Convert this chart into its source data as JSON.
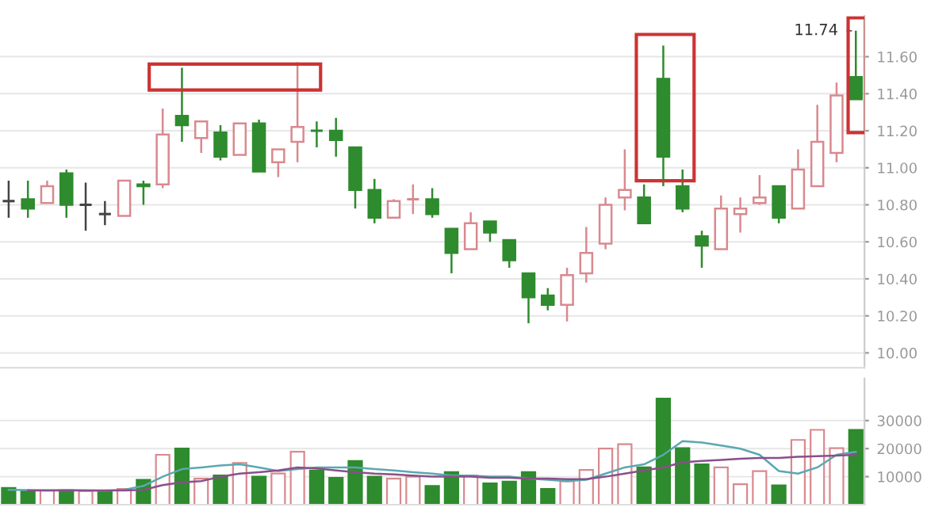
{
  "chart_data": [
    {
      "type": "candlestick",
      "categories": [
        null,
        null,
        null,
        null,
        null,
        null,
        null,
        null,
        null,
        null,
        null,
        null,
        null,
        null,
        null,
        null,
        null,
        null,
        null,
        null,
        null,
        null,
        null,
        null,
        null,
        null,
        null,
        null,
        null,
        null,
        null,
        null,
        null,
        null,
        null,
        null,
        null,
        null,
        null,
        null,
        null,
        null,
        null,
        null,
        null
      ],
      "ohlc": [
        [
          10.82,
          10.93,
          10.73,
          10.82
        ],
        [
          10.83,
          10.93,
          10.73,
          10.78
        ],
        [
          10.81,
          10.93,
          10.81,
          10.9
        ],
        [
          10.97,
          10.99,
          10.73,
          10.8
        ],
        [
          10.8,
          10.92,
          10.66,
          10.8
        ],
        [
          10.75,
          10.82,
          10.69,
          10.75
        ],
        [
          10.74,
          10.93,
          10.74,
          10.93
        ],
        [
          10.91,
          10.93,
          10.8,
          10.9
        ],
        [
          10.91,
          11.32,
          10.89,
          11.18
        ],
        [
          11.28,
          11.54,
          11.14,
          11.23
        ],
        [
          11.16,
          11.25,
          11.08,
          11.25
        ],
        [
          11.19,
          11.23,
          11.04,
          11.06
        ],
        [
          11.07,
          11.24,
          11.07,
          11.24
        ],
        [
          11.24,
          11.26,
          10.98,
          10.98
        ],
        [
          11.03,
          11.1,
          10.95,
          11.1
        ],
        [
          11.14,
          11.57,
          11.03,
          11.22
        ],
        [
          11.2,
          11.25,
          11.11,
          11.2
        ],
        [
          11.2,
          11.27,
          11.06,
          11.15
        ],
        [
          11.11,
          11.11,
          10.78,
          10.88
        ],
        [
          10.88,
          10.94,
          10.7,
          10.73
        ],
        [
          10.73,
          10.83,
          10.73,
          10.82
        ],
        [
          10.83,
          10.91,
          10.75,
          10.83
        ],
        [
          10.83,
          10.89,
          10.73,
          10.75
        ],
        [
          10.67,
          10.67,
          10.43,
          10.54
        ],
        [
          10.56,
          10.76,
          10.56,
          10.7
        ],
        [
          10.71,
          10.71,
          10.6,
          10.65
        ],
        [
          10.61,
          10.61,
          10.46,
          10.5
        ],
        [
          10.43,
          10.43,
          10.16,
          10.3
        ],
        [
          10.31,
          10.35,
          10.23,
          10.26
        ],
        [
          10.26,
          10.46,
          10.17,
          10.42
        ],
        [
          10.43,
          10.68,
          10.38,
          10.54
        ],
        [
          10.59,
          10.84,
          10.56,
          10.8
        ],
        [
          10.84,
          11.1,
          10.77,
          10.88
        ],
        [
          10.84,
          10.91,
          10.7,
          10.7
        ],
        [
          11.48,
          11.66,
          10.9,
          11.06
        ],
        [
          10.9,
          10.99,
          10.76,
          10.78
        ],
        [
          10.63,
          10.66,
          10.46,
          10.58
        ],
        [
          10.56,
          10.85,
          10.56,
          10.78
        ],
        [
          10.75,
          10.84,
          10.65,
          10.78
        ],
        [
          10.81,
          10.96,
          10.8,
          10.84
        ],
        [
          10.9,
          10.9,
          10.7,
          10.73
        ],
        [
          10.78,
          11.1,
          10.78,
          10.99
        ],
        [
          10.9,
          11.34,
          10.9,
          11.14
        ],
        [
          11.08,
          11.46,
          11.03,
          11.39
        ],
        [
          11.49,
          11.74,
          11.37,
          11.37
        ]
      ],
      "colors": [
        "#444444",
        "#2e8b2e",
        "#d9898f",
        "#2e8b2e",
        "#444444",
        "#444444",
        "#d9898f",
        "#2e8b2e",
        "#d9898f",
        "#2e8b2e",
        "#d9898f",
        "#2e8b2e",
        "#d9898f",
        "#2e8b2e",
        "#d9898f",
        "#d9898f",
        "#2e8b2e",
        "#2e8b2e",
        "#2e8b2e",
        "#2e8b2e",
        "#d9898f",
        "#d9898f",
        "#2e8b2e",
        "#2e8b2e",
        "#d9898f",
        "#2e8b2e",
        "#2e8b2e",
        "#2e8b2e",
        "#2e8b2e",
        "#d9898f",
        "#d9898f",
        "#d9898f",
        "#d9898f",
        "#2e8b2e",
        "#2e8b2e",
        "#2e8b2e",
        "#2e8b2e",
        "#d9898f",
        "#d9898f",
        "#d9898f",
        "#2e8b2e",
        "#d9898f",
        "#d9898f",
        "#d9898f",
        "#2e8b2e"
      ],
      "ylim": [
        9.92,
        11.82
      ],
      "yticks": [
        {
          "value": 10.0,
          "label": "10.00"
        },
        {
          "value": 10.2,
          "label": "10.20"
        },
        {
          "value": 10.4,
          "label": "10.40"
        },
        {
          "value": 10.6,
          "label": "10.60"
        },
        {
          "value": 10.8,
          "label": "10.80"
        },
        {
          "value": 11.0,
          "label": "11.00"
        },
        {
          "value": 11.2,
          "label": "11.20"
        },
        {
          "value": 11.4,
          "label": "11.40"
        },
        {
          "value": 11.6,
          "label": "11.60"
        }
      ],
      "annotations": [
        "11.74"
      ],
      "grid": "y",
      "tick_labels": "y"
    },
    {
      "type": "bar",
      "categories": [
        null,
        null,
        null,
        null,
        null,
        null,
        null,
        null,
        null,
        null,
        null,
        null,
        null,
        null,
        null,
        null,
        null,
        null,
        null,
        null,
        null,
        null,
        null,
        null,
        null,
        null,
        null,
        null,
        null,
        null,
        null,
        null,
        null,
        null,
        null,
        null,
        null,
        null,
        null,
        null,
        null,
        null,
        null,
        null,
        null
      ],
      "series": [
        {
          "type": "bar",
          "colors": [
            "#2e8b2e",
            "#2e8b2e",
            "#d9898f",
            "#2e8b2e",
            "#d9898f",
            "#2e8b2e",
            "#d9898f",
            "#2e8b2e",
            "#d9898f",
            "#2e8b2e",
            "#d9898f",
            "#2e8b2e",
            "#d9898f",
            "#2e8b2e",
            "#d9898f",
            "#d9898f",
            "#2e8b2e",
            "#2e8b2e",
            "#2e8b2e",
            "#2e8b2e",
            "#d9898f",
            "#d9898f",
            "#2e8b2e",
            "#2e8b2e",
            "#d9898f",
            "#2e8b2e",
            "#2e8b2e",
            "#2e8b2e",
            "#2e8b2e",
            "#d9898f",
            "#d9898f",
            "#d9898f",
            "#d9898f",
            "#2e8b2e",
            "#2e8b2e",
            "#2e8b2e",
            "#2e8b2e",
            "#d9898f",
            "#d9898f",
            "#d9898f",
            "#2e8b2e",
            "#d9898f",
            "#d9898f",
            "#d9898f",
            "#2e8b2e"
          ],
          "values": [
            6000,
            4900,
            5100,
            5100,
            4900,
            4900,
            5600,
            8900,
            17800,
            20000,
            9300,
            10400,
            14900,
            10000,
            11100,
            18900,
            12200,
            9600,
            15600,
            10000,
            9300,
            10000,
            6700,
            11600,
            10400,
            7600,
            8200,
            11600,
            5600,
            8400,
            12400,
            20000,
            21600,
            13300,
            37800,
            20200,
            14400,
            13300,
            7300,
            12000,
            6900,
            23100,
            26700,
            20200,
            26700
          ]
        },
        {
          "type": "line",
          "color": "#5aa8b0",
          "values": [
            5300,
            5200,
            5100,
            5200,
            5100,
            5000,
            5300,
            6700,
            10000,
            12700,
            13300,
            14000,
            14400,
            13300,
            12000,
            12700,
            13300,
            13300,
            13300,
            12700,
            12200,
            11600,
            11100,
            10400,
            10400,
            10000,
            10000,
            9300,
            8900,
            8400,
            8900,
            11100,
            13300,
            14400,
            17800,
            22700,
            22200,
            21100,
            20000,
            17800,
            12000,
            11100,
            13300,
            17800,
            18900
          ]
        },
        {
          "type": "line",
          "color": "#8a4f8a",
          "values": [
            null,
            5100,
            5100,
            5100,
            5100,
            5100,
            5100,
            5300,
            7000,
            8000,
            8400,
            10000,
            11100,
            11600,
            12200,
            13300,
            12900,
            12200,
            11600,
            11100,
            10800,
            10400,
            10000,
            10000,
            10000,
            9600,
            9600,
            9300,
            9300,
            9100,
            9100,
            10000,
            11100,
            12200,
            13300,
            15100,
            15600,
            16000,
            16400,
            16700,
            16700,
            17100,
            17300,
            17500,
            17800
          ]
        }
      ],
      "ylim": [
        0,
        45000
      ],
      "yticks": [
        10000,
        20000,
        30000
      ],
      "grid": "y",
      "tick_labels": "y"
    }
  ]
}
